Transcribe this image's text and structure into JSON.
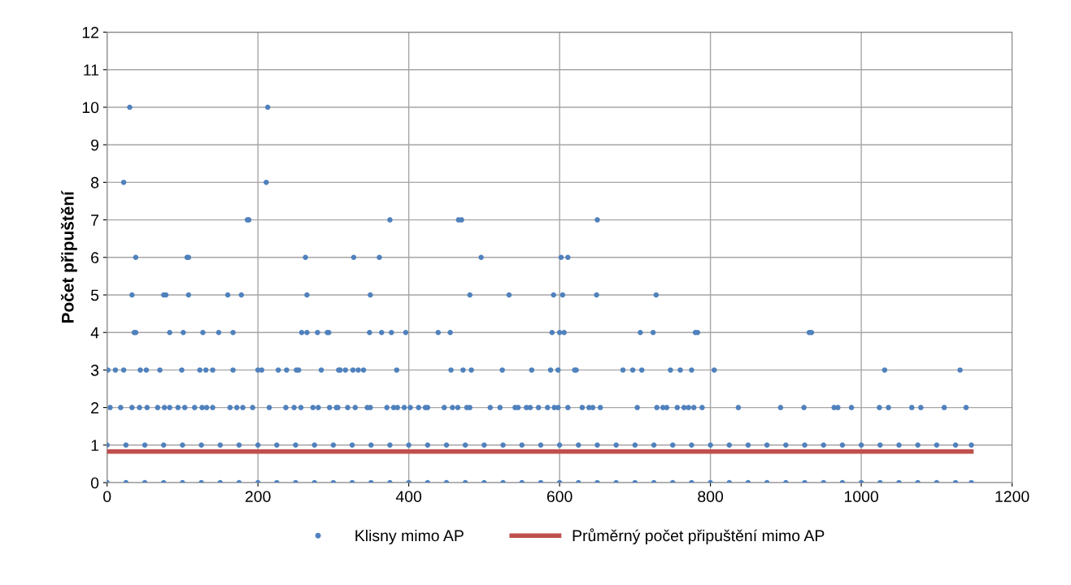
{
  "chart_data": {
    "type": "scatter",
    "ylabel": "Počet připuštění",
    "xlim": [
      0,
      1200
    ],
    "xticks": [
      0,
      200,
      400,
      600,
      800,
      1000,
      1200
    ],
    "ylim": [
      0,
      12
    ],
    "yticks": [
      0,
      1,
      2,
      3,
      4,
      5,
      6,
      7,
      8,
      9,
      10,
      11,
      12
    ],
    "grid": true,
    "legend": "bottom",
    "marker": "circle",
    "series": [
      {
        "name": "Klisny mimo AP",
        "color": "#4f81bd",
        "x": [
          30,
          213,
          22,
          211,
          186,
          188,
          375,
          466,
          470,
          650,
          38,
          106,
          108,
          263,
          327,
          361,
          496,
          602,
          611,
          33,
          75,
          78,
          108,
          160,
          178,
          265,
          349,
          481,
          533,
          592,
          604,
          649,
          728,
          36,
          38,
          83,
          101,
          127,
          148,
          167,
          258,
          265,
          279,
          292,
          294,
          348,
          364,
          377,
          396,
          439,
          455,
          590,
          600,
          606,
          707,
          724,
          780,
          783,
          931,
          934,
          1,
          11,
          22,
          44,
          52,
          70,
          99,
          123,
          131,
          140,
          167,
          200,
          205,
          227,
          238,
          251,
          254,
          284,
          307,
          309,
          316,
          326,
          333,
          340,
          384,
          456,
          472,
          483,
          524,
          563,
          588,
          598,
          620,
          622,
          684,
          697,
          709,
          747,
          760,
          775,
          805,
          1031,
          1131,
          4,
          18,
          33,
          43,
          53,
          67,
          76,
          83,
          94,
          103,
          116,
          126,
          132,
          140,
          163,
          172,
          180,
          193,
          215,
          237,
          248,
          257,
          273,
          280,
          295,
          304,
          306,
          319,
          329,
          345,
          349,
          371,
          380,
          385,
          394,
          402,
          413,
          422,
          425,
          447,
          458,
          465,
          477,
          481,
          508,
          521,
          541,
          545,
          556,
          561,
          572,
          584,
          593,
          598,
          611,
          630,
          639,
          644,
          654,
          703,
          729,
          737,
          742,
          756,
          765,
          771,
          778,
          789,
          837,
          893,
          924,
          964,
          969,
          987,
          1024,
          1036,
          1067,
          1079,
          1110,
          1139,
          0,
          25,
          50,
          75,
          100,
          125,
          150,
          175,
          200,
          225,
          250,
          275,
          300,
          325,
          350,
          375,
          400,
          425,
          450,
          475,
          500,
          525,
          550,
          575,
          600,
          625,
          650,
          675,
          700,
          725,
          750,
          775,
          800,
          825,
          850,
          875,
          900,
          925,
          950,
          975,
          1000,
          1025,
          1050,
          1075,
          1100,
          1125,
          1146,
          0,
          25,
          50,
          75,
          100,
          125,
          150,
          175,
          200,
          225,
          250,
          275,
          300,
          325,
          350,
          375,
          400,
          425,
          450,
          475,
          500,
          525,
          550,
          575,
          600,
          625,
          650,
          675,
          700,
          725,
          750,
          775,
          800,
          825,
          850,
          875,
          900,
          925,
          950,
          975,
          1000,
          1025,
          1050,
          1075,
          1100,
          1125,
          1146
        ],
        "values": [
          10,
          10,
          8,
          8,
          7,
          7,
          7,
          7,
          7,
          7,
          6,
          6,
          6,
          6,
          6,
          6,
          6,
          6,
          6,
          5,
          5,
          5,
          5,
          5,
          5,
          5,
          5,
          5,
          5,
          5,
          5,
          5,
          5,
          4,
          4,
          4,
          4,
          4,
          4,
          4,
          4,
          4,
          4,
          4,
          4,
          4,
          4,
          4,
          4,
          4,
          4,
          4,
          4,
          4,
          4,
          4,
          4,
          4,
          4,
          4,
          3,
          3,
          3,
          3,
          3,
          3,
          3,
          3,
          3,
          3,
          3,
          3,
          3,
          3,
          3,
          3,
          3,
          3,
          3,
          3,
          3,
          3,
          3,
          3,
          3,
          3,
          3,
          3,
          3,
          3,
          3,
          3,
          3,
          3,
          3,
          3,
          3,
          3,
          3,
          3,
          3,
          3,
          3,
          2,
          2,
          2,
          2,
          2,
          2,
          2,
          2,
          2,
          2,
          2,
          2,
          2,
          2,
          2,
          2,
          2,
          2,
          2,
          2,
          2,
          2,
          2,
          2,
          2,
          2,
          2,
          2,
          2,
          2,
          2,
          2,
          2,
          2,
          2,
          2,
          2,
          2,
          2,
          2,
          2,
          2,
          2,
          2,
          2,
          2,
          2,
          2,
          2,
          2,
          2,
          2,
          2,
          2,
          2,
          2,
          2,
          2,
          2,
          2,
          2,
          2,
          2,
          2,
          2,
          2,
          2,
          2,
          2,
          2,
          2,
          2,
          2,
          2,
          2,
          2,
          2,
          2,
          2,
          2,
          1,
          1,
          1,
          1,
          1,
          1,
          1,
          1,
          1,
          1,
          1,
          1,
          1,
          1,
          1,
          1,
          1,
          1,
          1,
          1,
          1,
          1,
          1,
          1,
          1,
          1,
          1,
          1,
          1,
          1,
          1,
          1,
          1,
          1,
          1,
          1,
          1,
          1,
          1,
          1,
          1,
          1,
          1,
          1,
          1,
          1,
          1,
          0,
          0,
          0,
          0,
          0,
          0,
          0,
          0,
          0,
          0,
          0,
          0,
          0,
          0,
          0,
          0,
          0,
          0,
          0,
          0,
          0,
          0,
          0,
          0,
          0,
          0,
          0,
          0,
          0,
          0,
          0,
          0,
          0,
          0,
          0,
          0,
          0,
          0,
          0,
          0,
          0,
          0,
          0,
          0,
          0,
          0,
          0
        ]
      },
      {
        "name": "Průměrný počet připuštění mimo AP",
        "type": "line",
        "color": "#c0504d",
        "marker": "none",
        "line_style": "solid",
        "x": [
          0,
          1146
        ],
        "values": [
          0.83,
          0.83
        ]
      }
    ]
  }
}
